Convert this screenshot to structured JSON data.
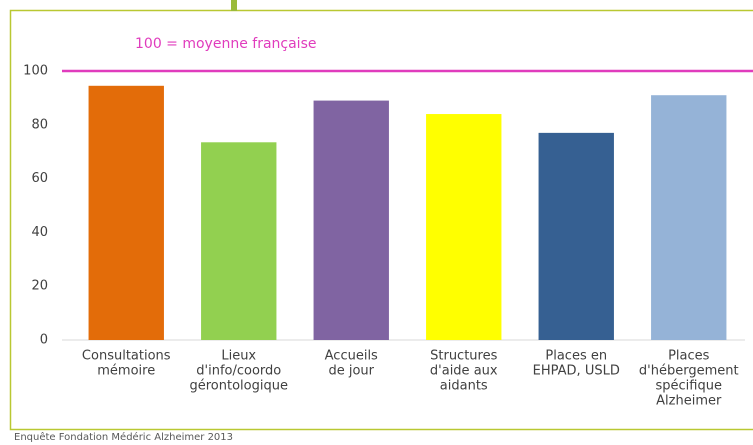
{
  "chart_data": {
    "type": "bar",
    "categories": [
      [
        "Consultations",
        "mémoire"
      ],
      [
        "Lieux",
        "d'info/coordo",
        "gérontologique"
      ],
      [
        "Accueils",
        "de jour"
      ],
      [
        "Structures",
        "d'aide aux",
        "aidants"
      ],
      [
        "Places en",
        "EHPAD, USLD"
      ],
      [
        "Places",
        "d'hébergement",
        "spécifique",
        "Alzheimer"
      ]
    ],
    "values": [
      94.5,
      73.5,
      89,
      84,
      77,
      91
    ],
    "colors": [
      "#e36c09",
      "#92d050",
      "#8064a2",
      "#ffff00",
      "#366092",
      "#95b3d7"
    ],
    "ylim": [
      0,
      100
    ],
    "yticks": [
      0,
      20,
      40,
      60,
      80,
      100
    ],
    "grid": false,
    "reference_line": {
      "value": 100,
      "label": "100 = moyenne française",
      "color": "#e03cbd"
    },
    "source": "Enquête Fondation Médéric Alzheimer 2013"
  }
}
